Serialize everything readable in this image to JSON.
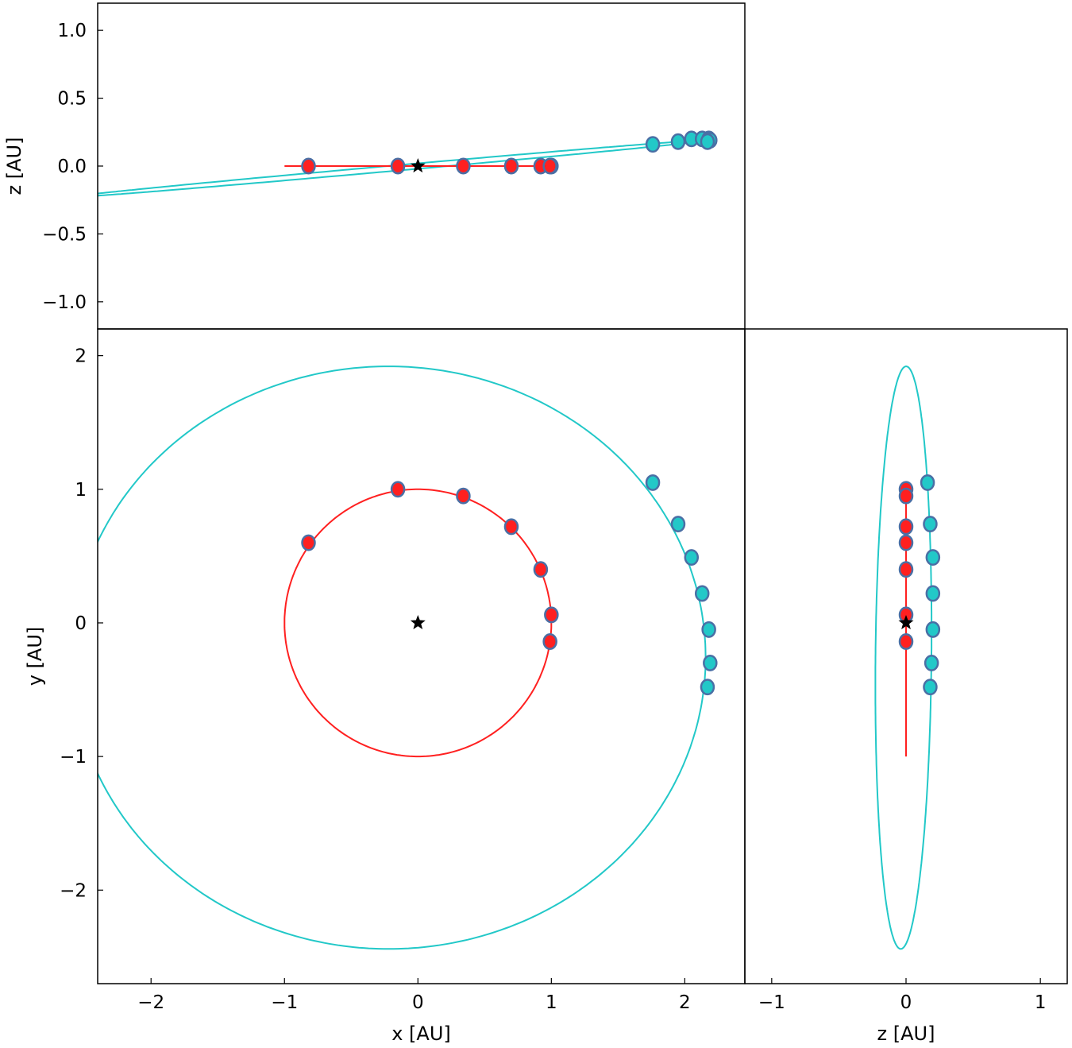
{
  "chart_data": {
    "type": "scatter",
    "colors": {
      "inner_orbit": "#ff2020",
      "outer_orbit": "#22c8c8",
      "marker_edge": "#4a6fa5",
      "star": "#000000"
    },
    "orbits": {
      "inner": {
        "a": 1.0,
        "e": 0.0,
        "inclination_deg": 0.0,
        "cx": 0.0,
        "cy": 0.0
      },
      "outer": {
        "a": 2.18,
        "e": 0.1,
        "inclination_deg": 5.0,
        "cx": -0.22,
        "cy": -0.26
      }
    },
    "star": {
      "x": 0,
      "y": 0,
      "z": 0
    },
    "inner_points": [
      {
        "x": -0.82,
        "y": 0.6,
        "z": 0.0
      },
      {
        "x": -0.15,
        "y": 1.0,
        "z": 0.0
      },
      {
        "x": 0.34,
        "y": 0.95,
        "z": 0.0
      },
      {
        "x": 0.7,
        "y": 0.72,
        "z": 0.0
      },
      {
        "x": 0.92,
        "y": 0.4,
        "z": 0.0
      },
      {
        "x": 1.0,
        "y": 0.06,
        "z": 0.0
      },
      {
        "x": 0.99,
        "y": -0.14,
        "z": 0.0
      }
    ],
    "outer_points": [
      {
        "x": 1.76,
        "y": 1.05,
        "z": 0.16
      },
      {
        "x": 1.95,
        "y": 0.74,
        "z": 0.18
      },
      {
        "x": 2.05,
        "y": 0.49,
        "z": 0.2
      },
      {
        "x": 2.13,
        "y": 0.22,
        "z": 0.2
      },
      {
        "x": 2.18,
        "y": -0.05,
        "z": 0.2
      },
      {
        "x": 2.19,
        "y": -0.3,
        "z": 0.19
      },
      {
        "x": 2.17,
        "y": -0.48,
        "z": 0.18
      }
    ],
    "panels": {
      "top": {
        "xlim": [
          -2.4,
          2.45
        ],
        "ylim": [
          -1.2,
          1.2
        ],
        "xlabel": "",
        "ylabel": "z [AU]",
        "yticks": [
          1.0,
          0.5,
          0.0,
          -0.5,
          -1.0
        ],
        "ytick_labels": [
          "1.0",
          "0.5",
          "0.0",
          "−0.5",
          "−1.0"
        ]
      },
      "main": {
        "xlim": [
          -2.4,
          2.45
        ],
        "ylim": [
          -2.7,
          2.2
        ],
        "xlabel": "x [AU]",
        "ylabel": "y [AU]",
        "xticks": [
          -2,
          -1,
          0,
          1,
          2
        ],
        "xtick_labels": [
          "−2",
          "−1",
          "0",
          "1",
          "2"
        ],
        "yticks": [
          2,
          1,
          0,
          -1,
          -2
        ],
        "ytick_labels": [
          "2",
          "1",
          "0",
          "−1",
          "−2"
        ]
      },
      "right": {
        "xlim": [
          -1.2,
          1.2
        ],
        "ylim": [
          -2.7,
          2.2
        ],
        "xlabel": "z [AU]",
        "ylabel": "",
        "xticks": [
          -1,
          0,
          1
        ],
        "xtick_labels": [
          "−1",
          "0",
          "1"
        ]
      }
    },
    "grid": false,
    "legend": "none"
  }
}
